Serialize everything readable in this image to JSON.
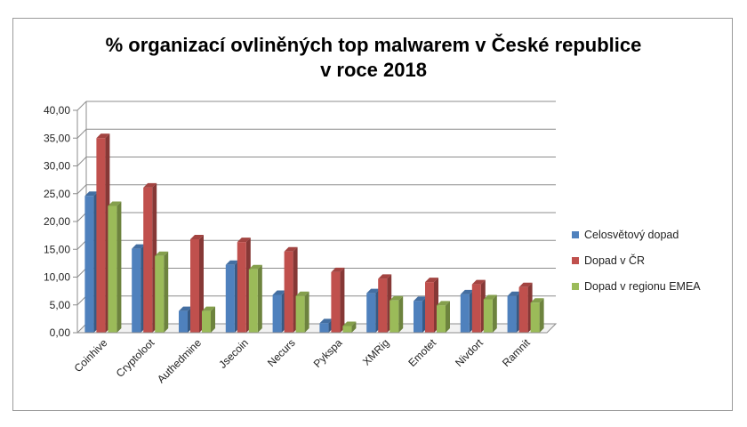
{
  "chart_data": {
    "type": "bar",
    "title": [
      "% organizací ovlině­ných top malwarem v České republice",
      "v roce 2018"
    ],
    "xlabel": "",
    "ylabel": "",
    "ylim": [
      0,
      40
    ],
    "yticks": [
      "0,00",
      "5,00",
      "10,00",
      "15,00",
      "20,00",
      "25,00",
      "30,00",
      "35,00",
      "40,00"
    ],
    "ytick_values": [
      0,
      5,
      10,
      15,
      20,
      25,
      30,
      35,
      40
    ],
    "grid": true,
    "legend_position": "right",
    "categories": [
      "Coinhive",
      "Cryptoloot",
      "Authedmine",
      "Jsecoin",
      "Necurs",
      "Pykspa",
      "XMRig",
      "Emotet",
      "Nivdort",
      "Ramnit"
    ],
    "series": [
      {
        "name": "Celosvětový dopad",
        "color": "#4f81bd",
        "values": [
          24.6,
          15.1,
          3.9,
          12.2,
          6.8,
          1.7,
          7.1,
          5.7,
          6.9,
          6.6
        ]
      },
      {
        "name": "Dopad v ČR",
        "color": "#c0504d",
        "values": [
          35.0,
          26.1,
          16.8,
          16.3,
          14.6,
          10.9,
          9.7,
          9.1,
          8.7,
          8.2
        ]
      },
      {
        "name": "Dopad v regionu EMEA",
        "color": "#9bbb59",
        "values": [
          22.8,
          13.8,
          3.9,
          11.4,
          6.6,
          1.2,
          5.8,
          4.9,
          6.0,
          5.4
        ]
      }
    ]
  }
}
